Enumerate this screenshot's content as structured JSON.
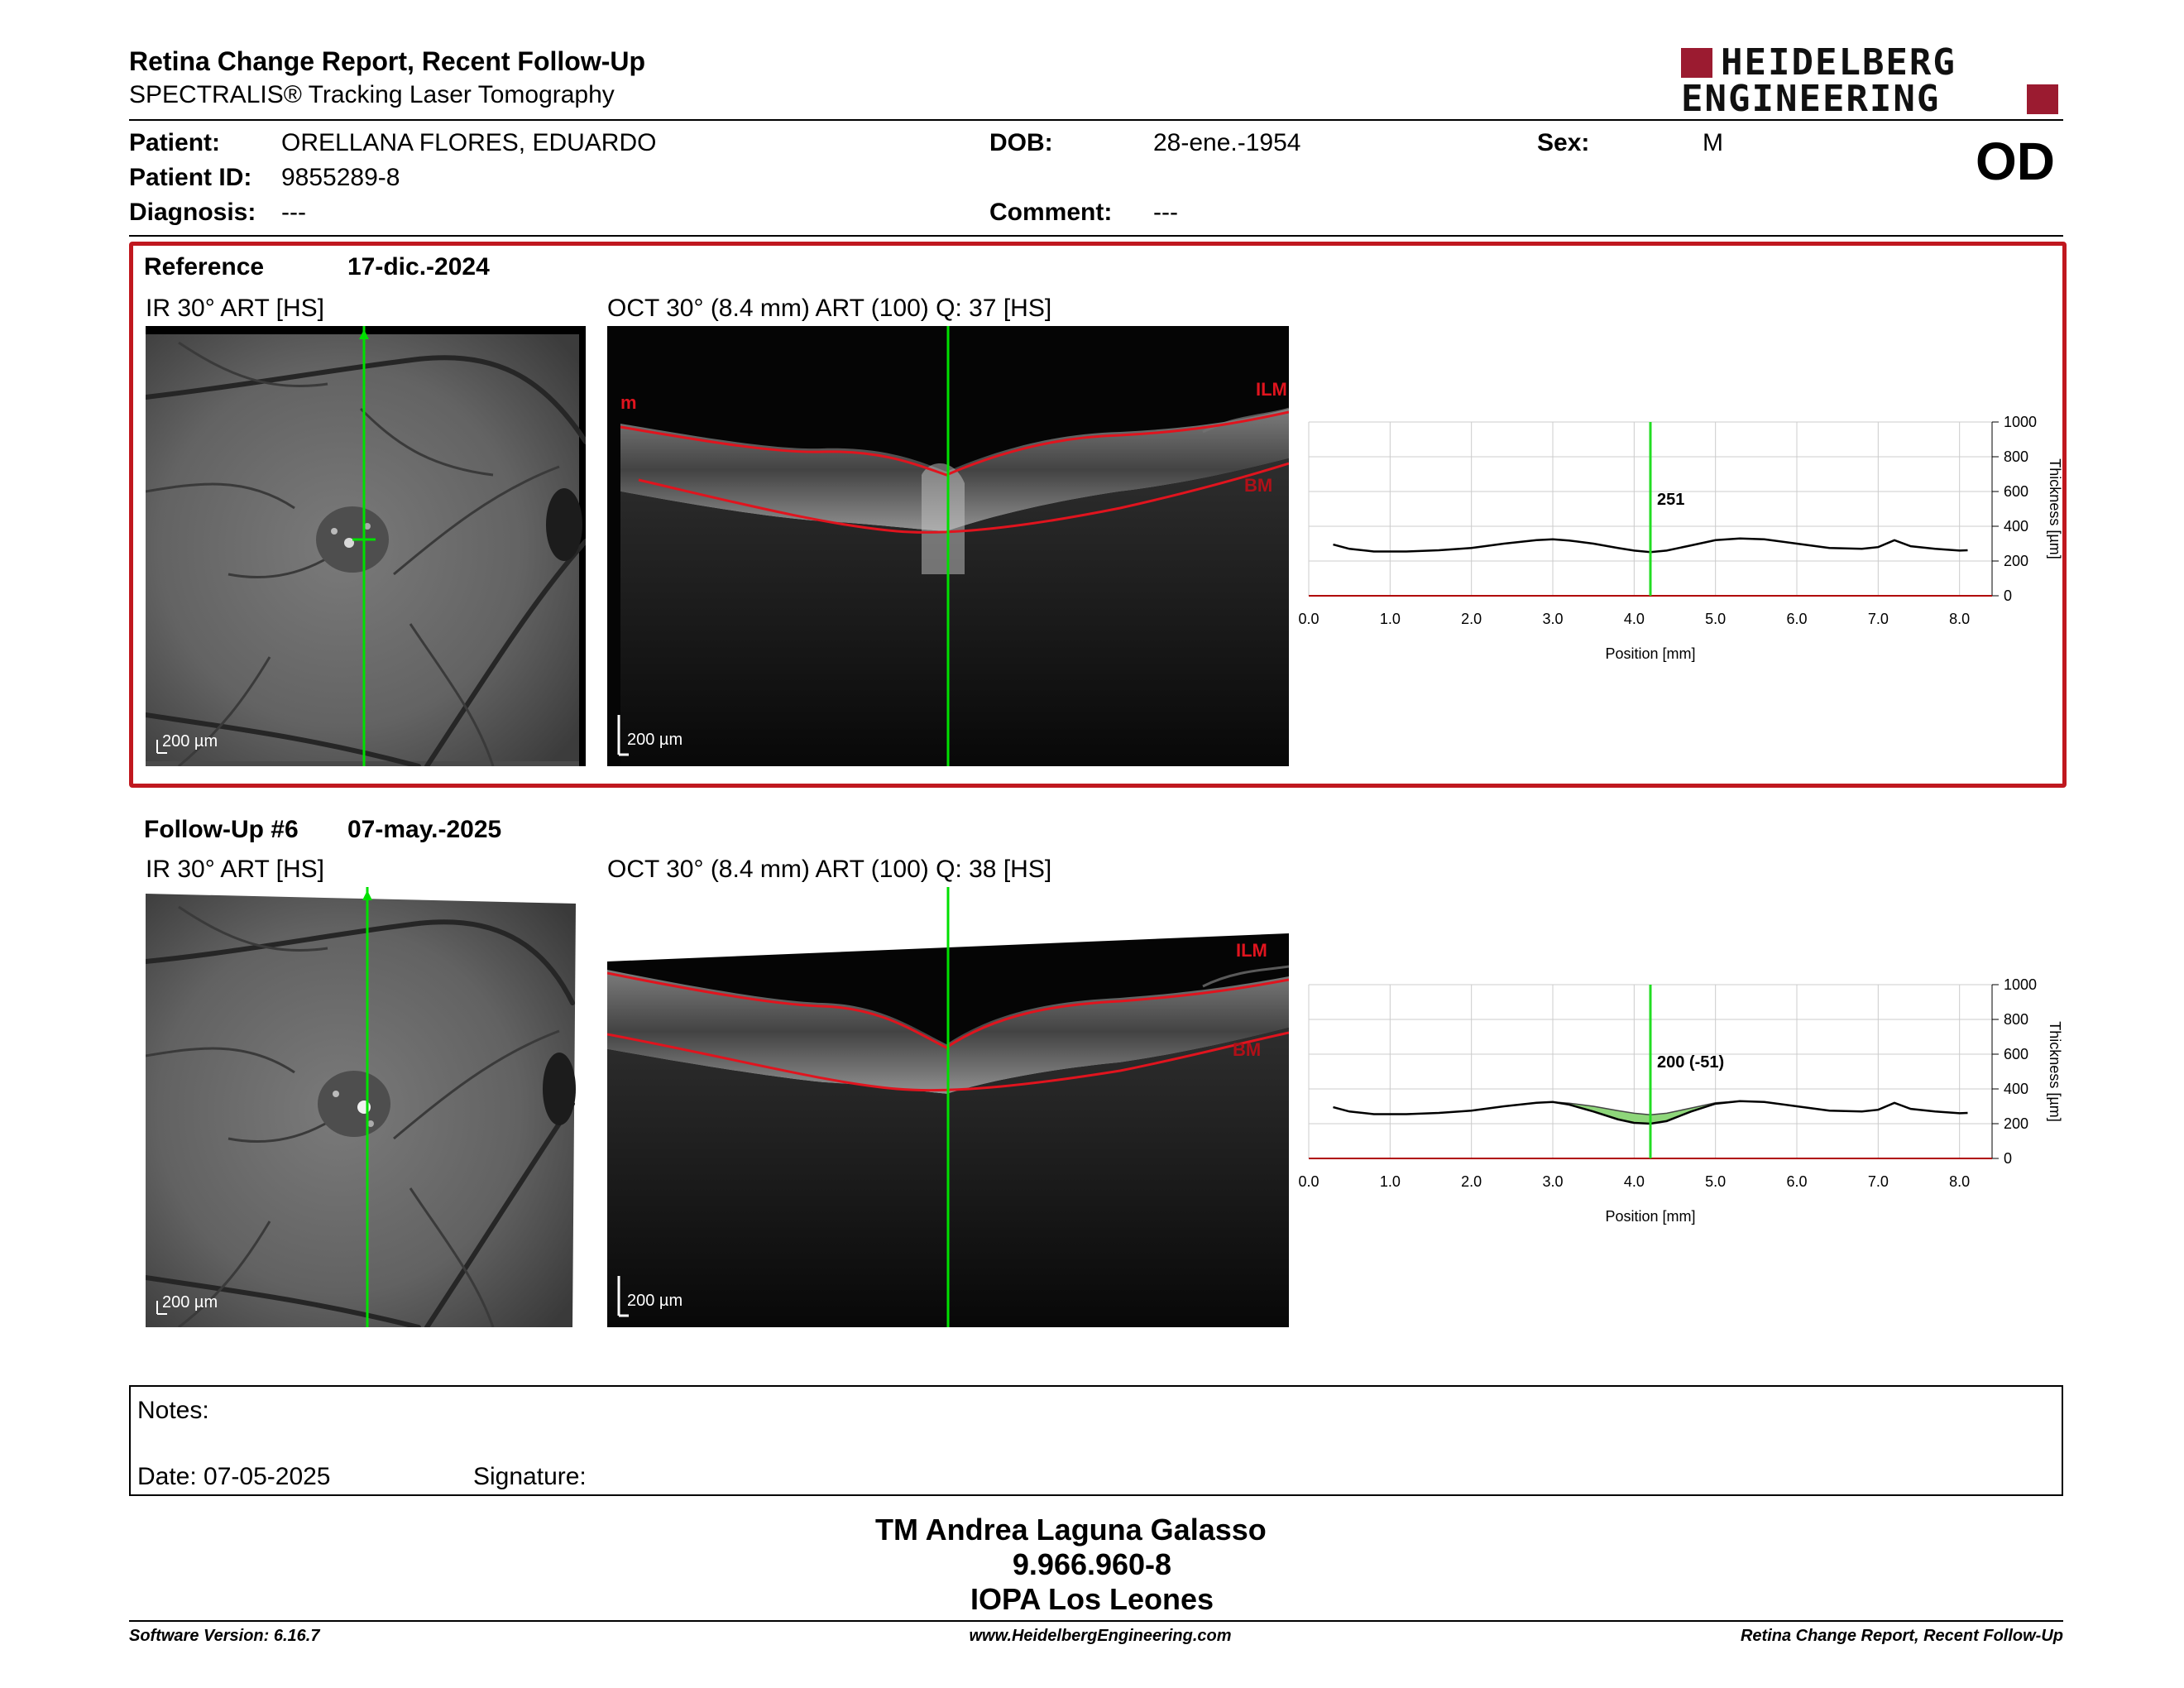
{
  "header": {
    "title": "Retina Change Report, Recent Follow-Up",
    "subtitle": "SPECTRALIS® Tracking Laser Tomography",
    "logo_line1": "HEIDELBERG",
    "logo_line2": "ENGINEERING",
    "brand_color": "#9b1b30"
  },
  "patient": {
    "patient_label": "Patient:",
    "patient_value": "ORELLANA FLORES, EDUARDO",
    "id_label": "Patient ID:",
    "id_value": "9855289-8",
    "diagnosis_label": "Diagnosis:",
    "diagnosis_value": "---",
    "dob_label": "DOB:",
    "dob_value": "28-ene.-1954",
    "comment_label": "Comment:",
    "comment_value": "---",
    "sex_label": "Sex:",
    "sex_value": "M",
    "eye": "OD"
  },
  "reference": {
    "label": "Reference",
    "date": "17-dic.-2024",
    "ir_caption": "IR 30° ART [HS]",
    "oct_caption": "OCT 30° (8.4 mm) ART (100) Q: 37 [HS]",
    "scale": "200 µm",
    "ilm": "ILM",
    "bm": "BM",
    "m_mark": "m"
  },
  "followup": {
    "label": "Follow-Up #6",
    "date": "07-may.-2025",
    "ir_caption": "IR 30° ART [HS]",
    "oct_caption": "OCT 30° (8.4 mm) ART (100) Q: 38 [HS]",
    "scale": "200 µm",
    "ilm": "ILM",
    "bm": "BM"
  },
  "chart_data": [
    {
      "type": "line",
      "xlabel": "Position [mm]",
      "ylabel": "Thickness [µm]",
      "xlim": [
        0,
        8.4
      ],
      "ylim": [
        0,
        1000
      ],
      "xticks": [
        "0.0",
        "1.0",
        "2.0",
        "3.0",
        "4.0",
        "5.0",
        "6.0",
        "7.0",
        "8.0"
      ],
      "yticks": [
        "0",
        "200",
        "400",
        "600",
        "800",
        "1000"
      ],
      "cursor_x": 4.2,
      "cursor_label": "251",
      "grid": true,
      "x": [
        0.3,
        0.5,
        0.8,
        1.2,
        1.6,
        2.0,
        2.4,
        2.8,
        3.0,
        3.2,
        3.5,
        3.8,
        4.0,
        4.2,
        4.4,
        4.7,
        5.0,
        5.3,
        5.6,
        6.0,
        6.4,
        6.8,
        7.0,
        7.2,
        7.4,
        7.7,
        8.0,
        8.1
      ],
      "series": [
        {
          "values": [
            295,
            270,
            255,
            255,
            262,
            275,
            300,
            320,
            325,
            318,
            300,
            275,
            260,
            251,
            260,
            290,
            320,
            330,
            325,
            300,
            275,
            270,
            280,
            320,
            285,
            270,
            260,
            262
          ]
        }
      ]
    },
    {
      "type": "line",
      "xlabel": "Position [mm]",
      "ylabel": "Thickness [µm]",
      "xlim": [
        0,
        8.4
      ],
      "ylim": [
        0,
        1000
      ],
      "xticks": [
        "0.0",
        "1.0",
        "2.0",
        "3.0",
        "4.0",
        "5.0",
        "6.0",
        "7.0",
        "8.0"
      ],
      "yticks": [
        "0",
        "200",
        "400",
        "600",
        "800",
        "1000"
      ],
      "cursor_x": 4.2,
      "cursor_label": "200 (-51)",
      "grid": true,
      "x": [
        0.3,
        0.5,
        0.8,
        1.2,
        1.6,
        2.0,
        2.4,
        2.8,
        3.0,
        3.2,
        3.5,
        3.8,
        4.0,
        4.2,
        4.4,
        4.7,
        5.0,
        5.3,
        5.6,
        6.0,
        6.4,
        6.8,
        7.0,
        7.2,
        7.4,
        7.7,
        8.0,
        8.1
      ],
      "series": [
        {
          "values": [
            295,
            270,
            255,
            255,
            262,
            275,
            300,
            320,
            325,
            310,
            270,
            225,
            205,
            200,
            215,
            270,
            315,
            330,
            325,
            300,
            275,
            270,
            280,
            320,
            285,
            270,
            260,
            262
          ]
        },
        {
          "values": [
            295,
            270,
            255,
            255,
            262,
            275,
            300,
            320,
            325,
            318,
            300,
            275,
            260,
            251,
            260,
            290,
            320,
            330,
            325,
            300,
            275,
            270,
            280,
            320,
            285,
            270,
            260,
            262
          ]
        }
      ],
      "difference_color": "#8ed67a"
    }
  ],
  "notes": {
    "notes_label": "Notes:",
    "date_label": "Date: 07-05-2025",
    "signature_label": "Signature:"
  },
  "signature": {
    "name": "TM Andrea Laguna Galasso",
    "id": "9.966.960-8",
    "org": "IOPA Los Leones"
  },
  "footer": {
    "version": "Software Version: 6.16.7",
    "website": "www.HeidelbergEngineering.com",
    "report_name": "Retina Change Report, Recent Follow-Up"
  }
}
